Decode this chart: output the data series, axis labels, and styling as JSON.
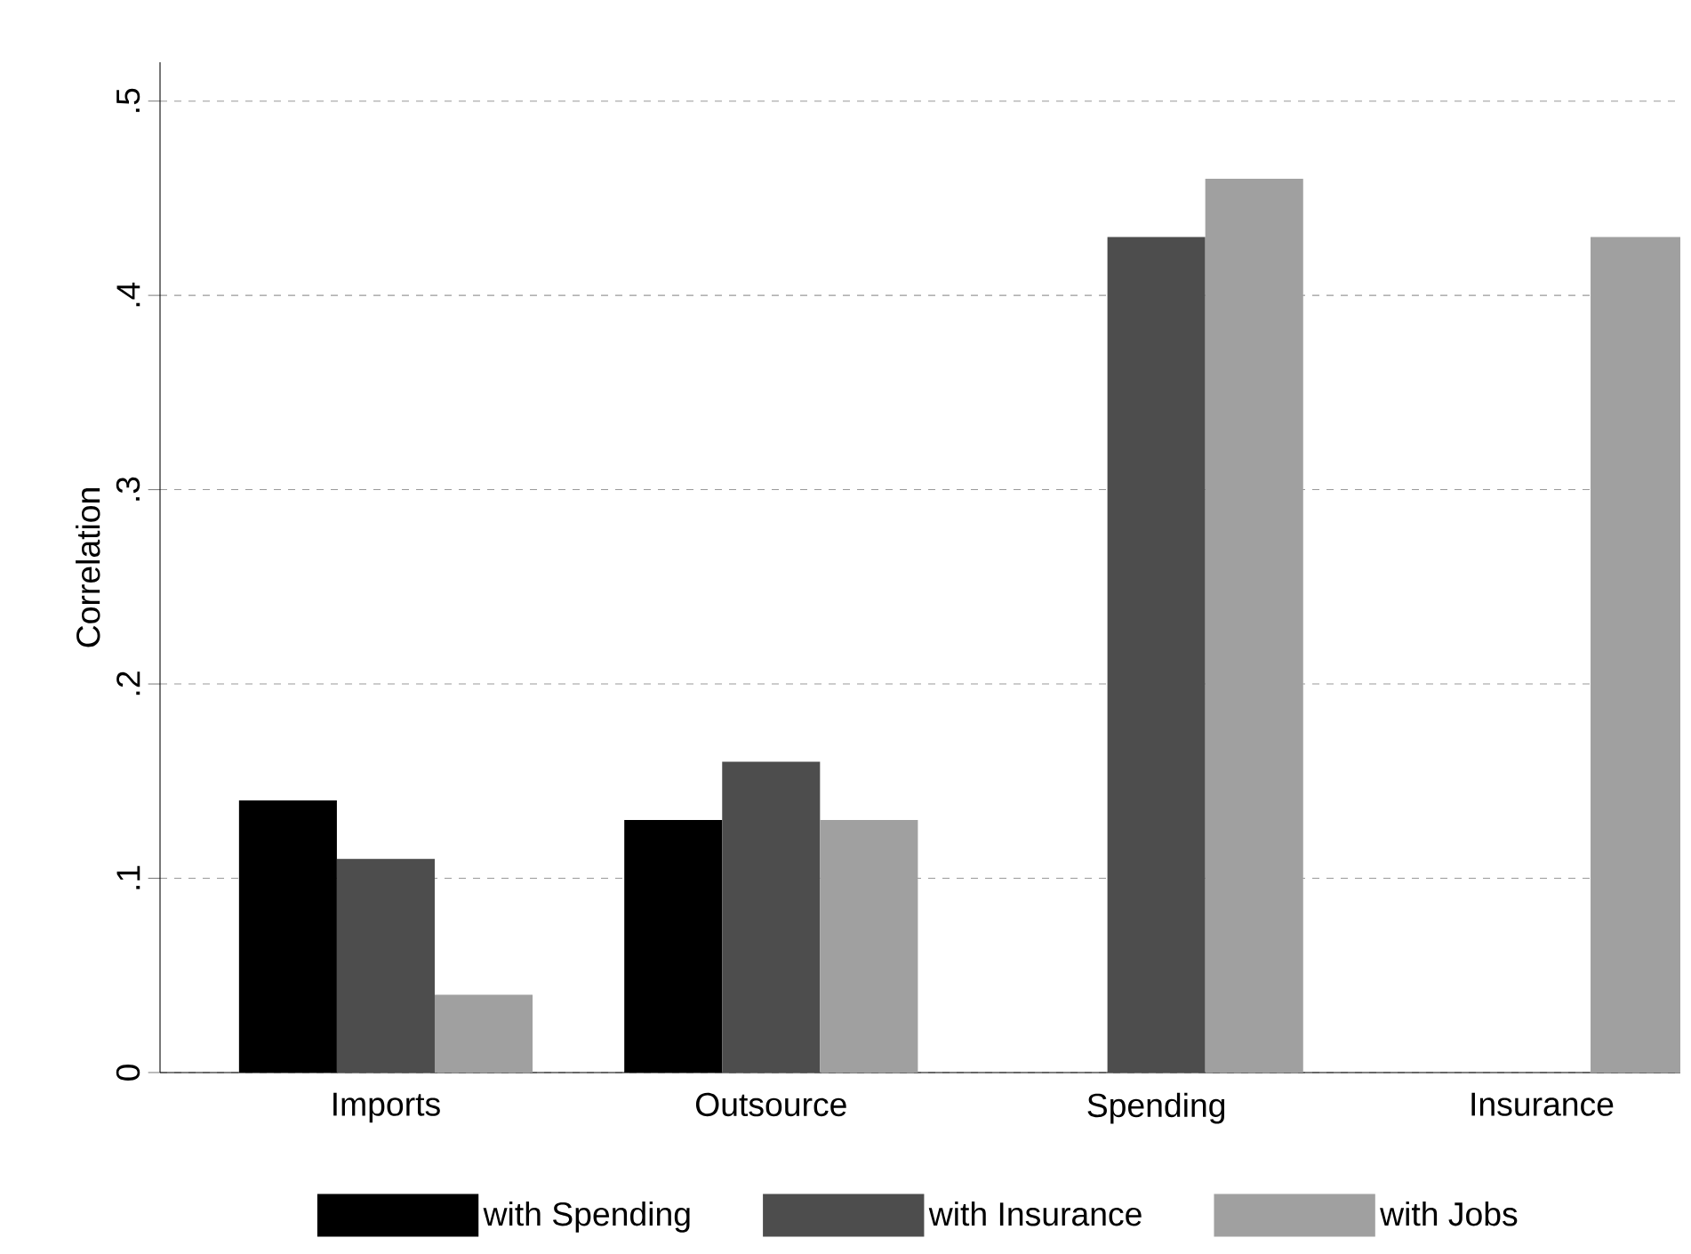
{
  "chart_data": {
    "type": "bar",
    "ylabel": "Correlation",
    "categories": [
      "Imports",
      "Outsource",
      "Spending",
      "Insurance"
    ],
    "series": [
      {
        "name": "with Spending",
        "color": "#000000",
        "values": [
          0.14,
          0.13,
          null,
          null
        ]
      },
      {
        "name": "with Insurance",
        "color": "#4d4d4d",
        "values": [
          0.11,
          0.16,
          0.43,
          null
        ]
      },
      {
        "name": "with Jobs",
        "color": "#a0a0a0",
        "values": [
          0.04,
          0.13,
          0.46,
          0.43
        ]
      }
    ],
    "ylim": [
      0,
      0.52
    ],
    "yticks": [
      0,
      {
        "value": 0.1,
        "label": ".1"
      },
      {
        "value": 0.2,
        "label": ".2"
      },
      {
        "value": 0.3,
        "label": ".3"
      },
      {
        "value": 0.4,
        "label": ".4"
      },
      {
        "value": 0.5,
        "label": ".5"
      }
    ],
    "grid": "y",
    "legend": "bottom"
  }
}
